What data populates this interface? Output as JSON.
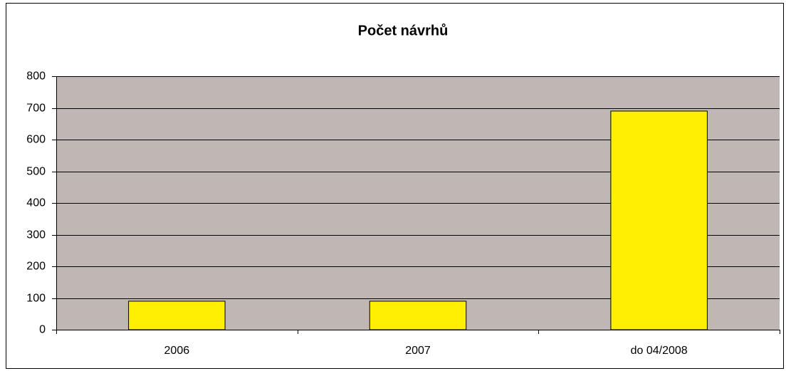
{
  "chart_data": {
    "type": "bar",
    "title": "Počet návrhů",
    "categories": [
      "2006",
      "2007",
      "do 04/2008"
    ],
    "values": [
      90,
      90,
      690
    ],
    "color": "#ffef00",
    "ylim": [
      0,
      800
    ],
    "yticks": [
      0,
      100,
      200,
      300,
      400,
      500,
      600,
      700,
      800
    ],
    "grid": true
  }
}
